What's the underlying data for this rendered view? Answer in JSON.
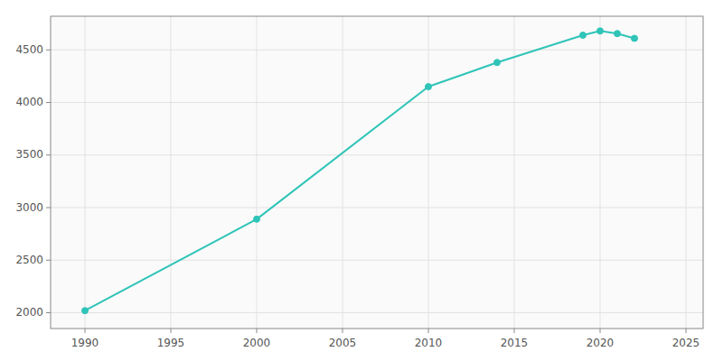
{
  "chart_data": {
    "type": "line",
    "x": [
      1990,
      2000,
      2010,
      2014,
      2019,
      2020,
      2021,
      2022
    ],
    "values": [
      2020,
      2890,
      4150,
      4380,
      4640,
      4680,
      4655,
      4610
    ],
    "color": "#2FC4B8",
    "marker": "circle",
    "xlim": [
      1988,
      2026
    ],
    "ylim": [
      1850,
      4820
    ],
    "xticks": [
      1990,
      1995,
      2000,
      2005,
      2010,
      2015,
      2020,
      2025
    ],
    "yticks": [
      2000,
      2500,
      3000,
      3500,
      4000,
      4500
    ],
    "grid": true
  }
}
